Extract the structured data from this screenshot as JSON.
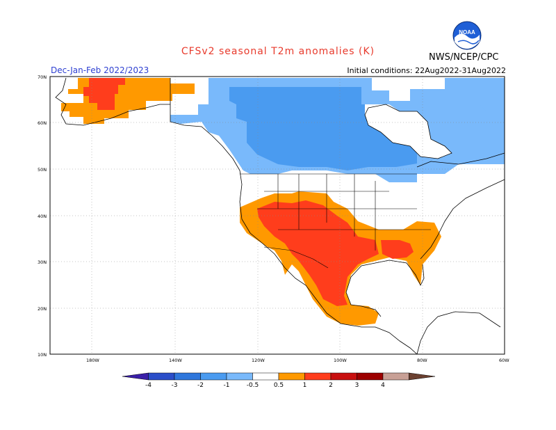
{
  "header": {
    "title": "CFSv2  seasonal  T2m  anomalies  (K)",
    "title_color": "#e83a2c",
    "period": "Dec-Jan-Feb 2022/2023",
    "period_color": "#2d3fd1",
    "initial_conditions": "Initial conditions: 22Aug2022-31Aug2022",
    "agency": "NWS/NCEP/CPC",
    "logo_text": "NOAA"
  },
  "map": {
    "lat_labels": [
      "70N",
      "60N",
      "50N",
      "40N",
      "30N",
      "20N",
      "10N"
    ],
    "lon_labels": [
      "180W",
      "140W",
      "120W",
      "100W",
      "80W",
      "60W"
    ],
    "grid": true,
    "anomaly_regions": [
      {
        "region": "western-alaska",
        "level": "0.5 to 1",
        "color": "#ff9900"
      },
      {
        "region": "western-alaska-core",
        "level": "1 to 2",
        "color": "#ff3d1c"
      },
      {
        "region": "canada",
        "level": "-1 to -0.5",
        "color": "#79b9fb"
      },
      {
        "region": "central-canada",
        "level": "-2 to -1",
        "color": "#4a9bf0"
      },
      {
        "region": "southern-us",
        "level": "0.5 to 1",
        "color": "#ff9900"
      },
      {
        "region": "southwest-us-mexico",
        "level": "1 to 2",
        "color": "#ff3d1c"
      }
    ]
  },
  "colorbar": {
    "tick_labels": [
      "-4",
      "-3",
      "-2",
      "-1",
      "-0.5",
      "0.5",
      "1",
      "2",
      "3",
      "4"
    ],
    "colors": [
      "#3a1fa8",
      "#2b4ec9",
      "#2f77dc",
      "#4a9bf0",
      "#79b9fb",
      "#ffffff",
      "#ff9900",
      "#ff3d1c",
      "#c80f0f",
      "#9c0000",
      "#c8a096",
      "#6b4030"
    ]
  }
}
